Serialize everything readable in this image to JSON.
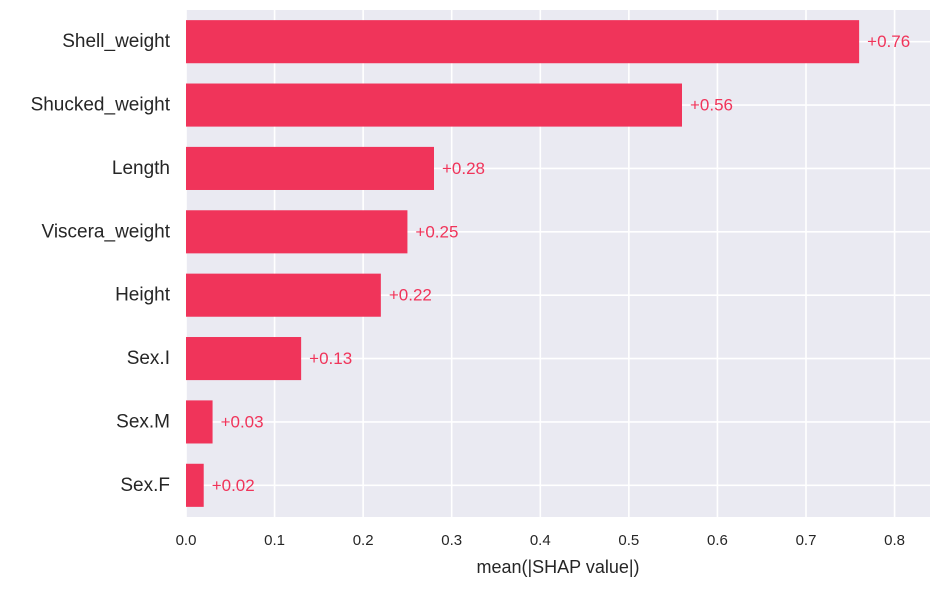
{
  "chart_data": {
    "type": "bar",
    "orientation": "horizontal",
    "categories": [
      "Shell_weight",
      "Shucked_weight",
      "Length",
      "Viscera_weight",
      "Height",
      "Sex.I",
      "Sex.M",
      "Sex.F"
    ],
    "values": [
      0.76,
      0.56,
      0.28,
      0.25,
      0.22,
      0.13,
      0.03,
      0.02
    ],
    "value_labels": [
      "+0.76",
      "+0.56",
      "+0.28",
      "+0.25",
      "+0.22",
      "+0.13",
      "+0.03",
      "+0.02"
    ],
    "title": "",
    "xlabel": "mean(|SHAP value|)",
    "ylabel": "",
    "xlim": [
      0,
      0.84
    ],
    "xticks": [
      0.0,
      0.1,
      0.2,
      0.3,
      0.4,
      0.5,
      0.6,
      0.7,
      0.8
    ],
    "xtick_labels": [
      "0.0",
      "0.1",
      "0.2",
      "0.3",
      "0.4",
      "0.5",
      "0.6",
      "0.7",
      "0.8"
    ],
    "grid": true,
    "bar_color": "#f0345a",
    "background_color": "#eaeaf2",
    "grid_color": "#ffffff"
  }
}
